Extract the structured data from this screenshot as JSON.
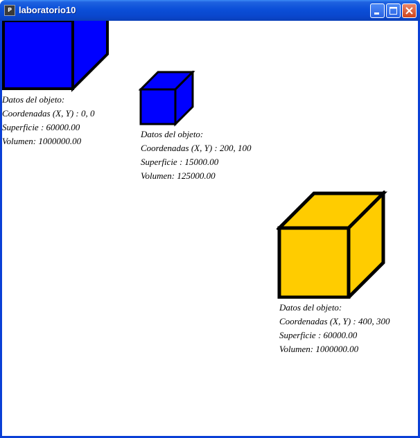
{
  "window": {
    "title": "laboratorio10",
    "app_icon": "processing-app-icon",
    "controls": [
      "minimize-icon",
      "maximize-icon",
      "close-icon"
    ]
  },
  "objects": [
    {
      "color": "#0000ff",
      "heading": "Datos del objeto:",
      "coords": "Coordenadas (X, Y) : 0, 0",
      "surface": "Superficie : 60000.00",
      "volume": "Volumen: 1000000.00"
    },
    {
      "color": "#0000ff",
      "heading": "Datos del objeto:",
      "coords": "Coordenadas (X, Y) : 200, 100",
      "surface": "Superficie : 15000.00",
      "volume": "Volumen: 125000.00"
    },
    {
      "color": "#ffcc00",
      "heading": "Datos del objeto:",
      "coords": "Coordenadas (X, Y) : 400, 300",
      "surface": "Superficie : 60000.00",
      "volume": "Volumen: 1000000.00"
    }
  ]
}
